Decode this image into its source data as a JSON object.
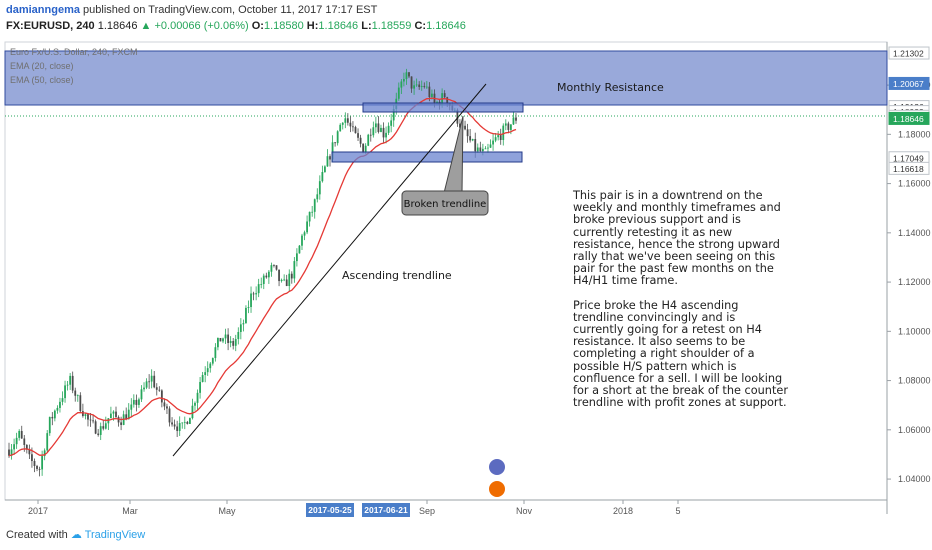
{
  "header": {
    "author": "damianngema",
    "published": "published on TradingView.com, October 11, 2017 17:17 EST",
    "symbol": "FX:EURUSD, 240",
    "last": "1.18646",
    "change": "▲ +0.00066 (+0.06%)",
    "o_label": "O:",
    "o": "1.18580",
    "h_label": "H:",
    "h": "1.18646",
    "l_label": "L:",
    "l": "1.18559",
    "c_label": "C:",
    "c": "1.18646"
  },
  "legend": {
    "title": "Euro Fx/U.S. Dollar, 240, FXCM",
    "ema20": "EMA (20, close)",
    "ema50": "EMA (50, close)"
  },
  "labels": {
    "monthly_resistance": "Monthly Resistance",
    "broken_trendline": "Broken trendline",
    "ascending_trendline": "Ascending trendline"
  },
  "analysis": {
    "paragraph1": "This pair is in a downtrend on the weekly and monthly timeframes and broke previous support and is currently retesting it as new resistance, hence the strong upward rally that we've been seeing on this pair for the past few months on the H4/H1 time frame.",
    "paragraph2": "Price broke the H4 ascending trendline convincingly and is currently going for a retest on H4 resistance. It also seems to be completing a right shoulder of a possible H/S pattern which is confluence for a sell. I will be looking for a short at the break of the counter trendline with profit zones at support."
  },
  "footer": {
    "created": "Created with",
    "brand": "TradingView"
  },
  "colors": {
    "candle_up": "#26a65b",
    "candle_down": "#4b4b4b",
    "ema20": "#e53935",
    "resistance_zone": "#5b74c4",
    "price_label": "#26a65b",
    "blue_label": "#4a7ec9"
  },
  "chart_data": {
    "type": "candlestick",
    "symbol": "FX:EURUSD",
    "timeframe": "240",
    "ylim": [
      1.0315,
      1.2175
    ],
    "y_ticks": [
      "1.04000",
      "1.06000",
      "1.08000",
      "1.10000",
      "1.12000",
      "1.14000",
      "1.16000",
      "1.18000",
      "1.20000"
    ],
    "x_ticks": [
      "2017",
      "Mar",
      "May",
      "Sep",
      "Nov",
      "2018",
      "5"
    ],
    "x_highlighted": [
      "2017-05-25",
      "2017-06-21"
    ],
    "price_axis_labels": [
      {
        "value": "1.21302",
        "style": "plain"
      },
      {
        "value": "1.19126",
        "style": "plain"
      },
      {
        "value": "1.18923",
        "style": "plain"
      },
      {
        "value": "1.18732",
        "style": "plain"
      },
      {
        "value": "1.18646",
        "style": "green"
      },
      {
        "value": "02:42:30",
        "style": "green"
      },
      {
        "value": "1.17049",
        "style": "plain"
      },
      {
        "value": "1.16618",
        "style": "plain"
      },
      {
        "value": "1.20067",
        "style": "blue"
      }
    ],
    "price_path": [
      [
        0,
        1.052
      ],
      [
        0.02,
        1.058
      ],
      [
        0.04,
        1.048
      ],
      [
        0.06,
        1.044
      ],
      [
        0.08,
        1.063
      ],
      [
        0.1,
        1.072
      ],
      [
        0.12,
        1.08
      ],
      [
        0.14,
        1.07
      ],
      [
        0.16,
        1.062
      ],
      [
        0.18,
        1.06
      ],
      [
        0.2,
        1.066
      ],
      [
        0.22,
        1.064
      ],
      [
        0.24,
        1.068
      ],
      [
        0.26,
        1.074
      ],
      [
        0.28,
        1.082
      ],
      [
        0.3,
        1.072
      ],
      [
        0.32,
        1.064
      ],
      [
        0.34,
        1.06
      ],
      [
        0.36,
        1.068
      ],
      [
        0.38,
        1.082
      ],
      [
        0.4,
        1.09
      ],
      [
        0.42,
        1.098
      ],
      [
        0.44,
        1.094
      ],
      [
        0.46,
        1.102
      ],
      [
        0.48,
        1.116
      ],
      [
        0.5,
        1.12
      ],
      [
        0.52,
        1.126
      ],
      [
        0.54,
        1.118
      ],
      [
        0.56,
        1.124
      ],
      [
        0.58,
        1.14
      ],
      [
        0.6,
        1.15
      ],
      [
        0.62,
        1.164
      ],
      [
        0.64,
        1.176
      ],
      [
        0.66,
        1.188
      ],
      [
        0.68,
        1.18
      ],
      [
        0.7,
        1.174
      ],
      [
        0.72,
        1.186
      ],
      [
        0.74,
        1.18
      ],
      [
        0.76,
        1.19
      ],
      [
        0.78,
        1.205
      ],
      [
        0.8,
        1.198
      ],
      [
        0.82,
        1.2
      ],
      [
        0.84,
        1.192
      ],
      [
        0.86,
        1.196
      ],
      [
        0.88,
        1.188
      ],
      [
        0.9,
        1.18
      ],
      [
        0.92,
        1.174
      ],
      [
        0.94,
        1.172
      ],
      [
        0.96,
        1.178
      ],
      [
        1.0,
        1.1865
      ]
    ],
    "zones": [
      {
        "name": "Monthly Resistance",
        "from": 1.1915,
        "to": 1.213
      },
      {
        "name": "H4 resistance",
        "from": 1.1895,
        "to": 1.1915
      },
      {
        "name": "H4 support",
        "from": 1.1705,
        "to": 1.1725
      }
    ],
    "trendline": {
      "from": {
        "date": "2017-04",
        "price": 1.0425
      },
      "to": {
        "date": "2017-09",
        "price": 1.199
      }
    }
  }
}
